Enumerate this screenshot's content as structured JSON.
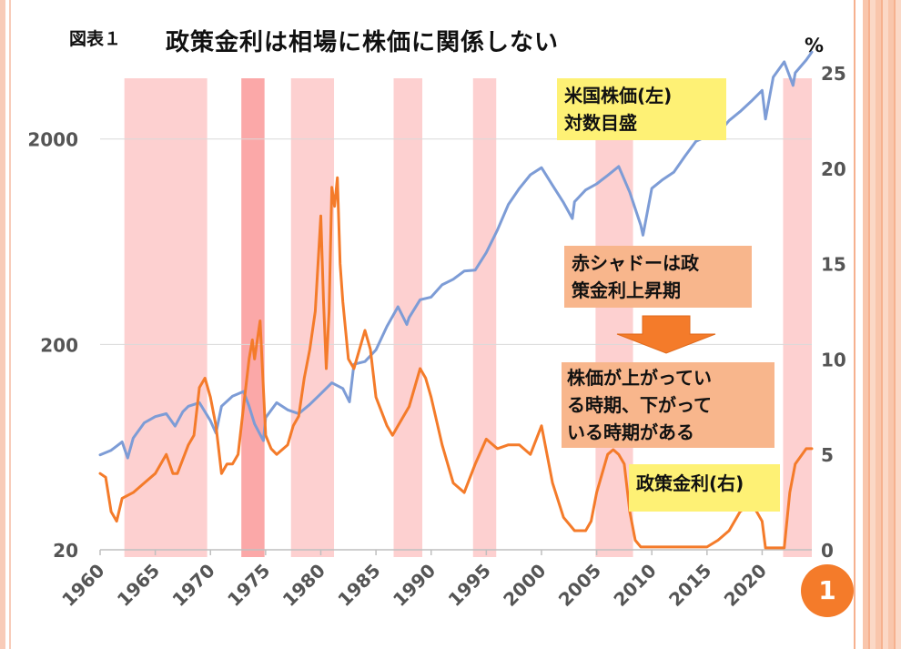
{
  "figure_label": "図表１",
  "page_number": "1",
  "colors": {
    "stock_line": "#7d9cd6",
    "rate_line": "#f47b2a",
    "shade": "#fdd0d0",
    "shade_dark": "#fba8a8",
    "arrow": "#f47b2a",
    "grid": "#d9d9d9"
  },
  "annotations": {
    "stock_note": [
      "米国株価(左)",
      "対数目盛"
    ],
    "shadow_note": [
      "赤シャドーは政",
      "策金利上昇期"
    ],
    "period_note": [
      "株価が上がってい",
      "る時期、下がって",
      "いる時期がある"
    ],
    "rate_note": "政策金利(右)"
  },
  "chart_data": {
    "type": "line",
    "title": "政策金利は相場に株価に関係しない",
    "x_ticks": [
      "1960",
      "1965",
      "1970",
      "1975",
      "1980",
      "1985",
      "1990",
      "1995",
      "2000",
      "2005",
      "2010",
      "2015",
      "2020"
    ],
    "xlim": [
      1960,
      2024.5
    ],
    "y_left": {
      "label": "",
      "scale": "log",
      "ticks": [
        "20",
        "200",
        "2000"
      ],
      "lim": [
        20,
        4200
      ]
    },
    "y_right": {
      "label": "%",
      "ticks": [
        "0",
        "5",
        "10",
        "15",
        "20",
        "25"
      ],
      "lim": [
        0,
        25
      ]
    },
    "shaded_periods": [
      {
        "start": 1962.2,
        "end": 1969.7,
        "dark": false
      },
      {
        "start": 1972.8,
        "end": 1974.9,
        "dark": true
      },
      {
        "start": 1977.3,
        "end": 1981.2,
        "dark": false
      },
      {
        "start": 1986.6,
        "end": 1989.2,
        "dark": false
      },
      {
        "start": 1993.8,
        "end": 1995.9,
        "dark": false
      },
      {
        "start": 2004.9,
        "end": 2008.3,
        "dark": false
      },
      {
        "start": 2021.9,
        "end": 2024.5,
        "dark": false
      }
    ],
    "series": [
      {
        "name": "米国株価(左)",
        "axis": "left",
        "x": [
          1960,
          1961,
          1962,
          1962.5,
          1963,
          1964,
          1965,
          1966,
          1966.8,
          1967.5,
          1968,
          1969,
          1970,
          1970.5,
          1971,
          1972,
          1973,
          1973.5,
          1974,
          1974.8,
          1975,
          1976,
          1977,
          1978,
          1979,
          1980,
          1981,
          1982,
          1982.6,
          1983,
          1984,
          1985,
          1986,
          1987,
          1987.8,
          1988,
          1989,
          1990,
          1991,
          1992,
          1993,
          1994,
          1995,
          1996,
          1997,
          1998,
          1999,
          2000,
          2001,
          2002,
          2002.8,
          2003,
          2004,
          2005,
          2006,
          2007,
          2008,
          2009,
          2009.2,
          2010,
          2011,
          2012,
          2013,
          2014,
          2015,
          2016,
          2017,
          2018,
          2019,
          2020,
          2020.3,
          2021,
          2022,
          2022.8,
          2023,
          2024,
          2024.5
        ],
        "values": [
          58,
          61,
          67,
          56,
          70,
          83,
          89,
          92,
          80,
          94,
          100,
          104,
          85,
          74,
          100,
          112,
          118,
          100,
          82,
          68,
          88,
          104,
          96,
          92,
          102,
          115,
          130,
          122,
          105,
          160,
          165,
          188,
          245,
          305,
          250,
          270,
          330,
          340,
          390,
          415,
          455,
          460,
          560,
          720,
          960,
          1150,
          1340,
          1450,
          1190,
          980,
          820,
          990,
          1130,
          1210,
          1330,
          1470,
          1100,
          760,
          680,
          1150,
          1270,
          1380,
          1650,
          1950,
          2060,
          2120,
          2460,
          2720,
          3050,
          3450,
          2500,
          4000,
          4750,
          3650,
          4200,
          4850,
          5300
        ]
      },
      {
        "name": "政策金利(右)",
        "axis": "right",
        "x": [
          1960,
          1960.5,
          1961,
          1961.5,
          1962,
          1963,
          1964,
          1965,
          1966,
          1966.6,
          1967,
          1968,
          1968.5,
          1969,
          1969.5,
          1970,
          1970.5,
          1971,
          1971.5,
          1972,
          1972.5,
          1973,
          1973.5,
          1973.8,
          1974,
          1974.5,
          1975,
          1975.5,
          1976,
          1977,
          1977.5,
          1978,
          1978.5,
          1979,
          1979.5,
          1980,
          1980.25,
          1980.5,
          1980.75,
          1981,
          1981.25,
          1981.5,
          1981.75,
          1982,
          1982.5,
          1983,
          1984,
          1984.5,
          1985,
          1986,
          1986.5,
          1987,
          1988,
          1989,
          1989.5,
          1990,
          1991,
          1992,
          1993,
          1994,
          1995,
          1996,
          1997,
          1998,
          1999,
          2000,
          2001,
          2002,
          2003,
          2004,
          2004.5,
          2005,
          2006,
          2006.5,
          2007,
          2007.5,
          2008,
          2008.5,
          2009,
          2010,
          2015,
          2016,
          2017,
          2018,
          2019,
          2019.5,
          2020,
          2020.3,
          2021,
          2022,
          2022.5,
          2023,
          2024,
          2024.5
        ],
        "values": [
          4.0,
          3.8,
          2.0,
          1.5,
          2.7,
          3.0,
          3.5,
          4.0,
          5.0,
          4.0,
          4.0,
          5.5,
          6.0,
          8.5,
          9.0,
          8.0,
          6.5,
          4.0,
          4.5,
          4.5,
          5.0,
          7.5,
          10.0,
          11.0,
          10.0,
          12.0,
          6.0,
          5.3,
          5.0,
          5.5,
          6.5,
          7.0,
          9.0,
          10.5,
          12.5,
          17.5,
          13.0,
          9.5,
          12.5,
          19.0,
          18.0,
          19.5,
          15.0,
          13.0,
          10.0,
          9.5,
          11.5,
          10.5,
          8.0,
          6.5,
          6.0,
          6.5,
          7.5,
          9.5,
          9.0,
          8.0,
          5.5,
          3.5,
          3.0,
          4.5,
          5.8,
          5.3,
          5.5,
          5.5,
          5.0,
          6.5,
          3.5,
          1.7,
          1.0,
          1.0,
          1.5,
          3.0,
          5.0,
          5.25,
          5.0,
          4.5,
          2.0,
          0.5,
          0.15,
          0.15,
          0.15,
          0.5,
          1.0,
          2.0,
          2.4,
          2.0,
          1.5,
          0.1,
          0.1,
          0.1,
          3.0,
          4.5,
          5.3,
          5.3
        ]
      }
    ]
  }
}
